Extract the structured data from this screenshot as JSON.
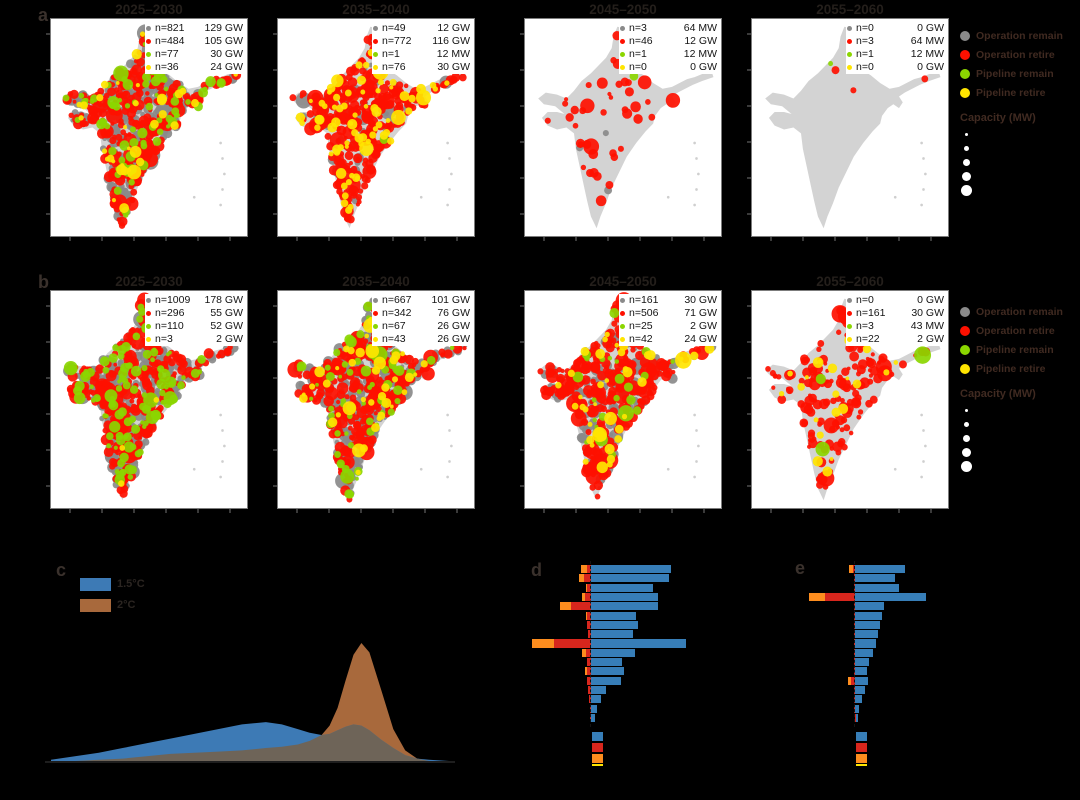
{
  "colors": {
    "background": "#000000",
    "map_land": "#d3d3d3",
    "map_bg": "#ffffff",
    "map_frame": "#7c7c7c",
    "cat_colors": {
      "operation_remain": "#8a8a8a",
      "operation_retire": "#fe1000",
      "pipeline_remain": "#8bd600",
      "pipeline_retire": "#ffe500"
    },
    "bar_blue": "#377eb8",
    "bar_red": "#d7261d",
    "bar_orange": "#fd8d1e",
    "bar_yellow": "#ffe500",
    "density_blue": "#3d7ab5",
    "density_brown": "#a8693c",
    "density_overlap": "#6e6458"
  },
  "panel_a": {
    "label": "a",
    "maps": [
      {
        "title": "2025–2030",
        "legend": [
          {
            "cat": "operation_remain",
            "n": 821,
            "n_label": "n=821",
            "cap_label": "129 GW"
          },
          {
            "cat": "operation_retire",
            "n": 484,
            "n_label": "n=484",
            "cap_label": "105 GW"
          },
          {
            "cat": "pipeline_remain",
            "n": 77,
            "n_label": "n=77",
            "cap_label": "30 GW"
          },
          {
            "cat": "pipeline_retire",
            "n": 36,
            "n_label": "n=36",
            "cap_label": "24 GW"
          }
        ]
      },
      {
        "title": "2035–2040",
        "legend": [
          {
            "cat": "operation_remain",
            "n": 49,
            "n_label": "n=49",
            "cap_label": "12 GW"
          },
          {
            "cat": "operation_retire",
            "n": 772,
            "n_label": "n=772",
            "cap_label": "116 GW"
          },
          {
            "cat": "pipeline_remain",
            "n": 1,
            "n_label": "n=1",
            "cap_label": "12 MW"
          },
          {
            "cat": "pipeline_retire",
            "n": 76,
            "n_label": "n=76",
            "cap_label": "30 GW"
          }
        ]
      },
      {
        "title": "2045–2050",
        "legend": [
          {
            "cat": "operation_remain",
            "n": 3,
            "n_label": "n=3",
            "cap_label": "64 MW"
          },
          {
            "cat": "operation_retire",
            "n": 46,
            "n_label": "n=46",
            "cap_label": "12 GW"
          },
          {
            "cat": "pipeline_remain",
            "n": 1,
            "n_label": "n=1",
            "cap_label": "12 MW"
          },
          {
            "cat": "pipeline_retire",
            "n": 0,
            "n_label": "n=0",
            "cap_label": "0 GW"
          }
        ]
      },
      {
        "title": "2055–2060",
        "legend": [
          {
            "cat": "operation_remain",
            "n": 0,
            "n_label": "n=0",
            "cap_label": "0 GW"
          },
          {
            "cat": "operation_retire",
            "n": 3,
            "n_label": "n=3",
            "cap_label": "64 MW"
          },
          {
            "cat": "pipeline_remain",
            "n": 1,
            "n_label": "n=1",
            "cap_label": "12 MW"
          },
          {
            "cat": "pipeline_retire",
            "n": 0,
            "n_label": "n=0",
            "cap_label": "0 GW"
          }
        ]
      }
    ]
  },
  "panel_b": {
    "label": "b",
    "maps": [
      {
        "title": "2025–2030",
        "legend": [
          {
            "cat": "operation_remain",
            "n": 1009,
            "n_label": "n=1009",
            "cap_label": "178 GW"
          },
          {
            "cat": "operation_retire",
            "n": 296,
            "n_label": "n=296",
            "cap_label": "55 GW"
          },
          {
            "cat": "pipeline_remain",
            "n": 110,
            "n_label": "n=110",
            "cap_label": "52 GW"
          },
          {
            "cat": "pipeline_retire",
            "n": 3,
            "n_label": "n=3",
            "cap_label": "2 GW"
          }
        ]
      },
      {
        "title": "2035–2040",
        "legend": [
          {
            "cat": "operation_remain",
            "n": 667,
            "n_label": "n=667",
            "cap_label": "101 GW"
          },
          {
            "cat": "operation_retire",
            "n": 342,
            "n_label": "n=342",
            "cap_label": "76 GW"
          },
          {
            "cat": "pipeline_remain",
            "n": 67,
            "n_label": "n=67",
            "cap_label": "26 GW"
          },
          {
            "cat": "pipeline_retire",
            "n": 43,
            "n_label": "n=43",
            "cap_label": "26 GW"
          }
        ]
      },
      {
        "title": "2045–2050",
        "legend": [
          {
            "cat": "operation_remain",
            "n": 161,
            "n_label": "n=161",
            "cap_label": "30 GW"
          },
          {
            "cat": "operation_retire",
            "n": 506,
            "n_label": "n=506",
            "cap_label": "71 GW"
          },
          {
            "cat": "pipeline_remain",
            "n": 25,
            "n_label": "n=25",
            "cap_label": "2 GW"
          },
          {
            "cat": "pipeline_retire",
            "n": 42,
            "n_label": "n=42",
            "cap_label": "24 GW"
          }
        ]
      },
      {
        "title": "2055–2060",
        "legend": [
          {
            "cat": "operation_remain",
            "n": 0,
            "n_label": "n=0",
            "cap_label": "0 GW"
          },
          {
            "cat": "operation_retire",
            "n": 161,
            "n_label": "n=161",
            "cap_label": "30 GW"
          },
          {
            "cat": "pipeline_remain",
            "n": 3,
            "n_label": "n=3",
            "cap_label": "43 MW"
          },
          {
            "cat": "pipeline_retire",
            "n": 22,
            "n_label": "n=22",
            "cap_label": "2 GW"
          }
        ]
      }
    ]
  },
  "side_legend": {
    "items": [
      {
        "key": "operation_remain",
        "label": "Operation remain",
        "color": "#8a8a8a"
      },
      {
        "key": "operation_retire",
        "label": "Operation retire",
        "color": "#fe1000"
      },
      {
        "key": "pipeline_remain",
        "label": "Pipeline remain",
        "color": "#8bd600"
      },
      {
        "key": "pipeline_retire",
        "label": "Pipeline retire",
        "color": "#ffe500"
      }
    ],
    "capacity_title": "Capacity (MW)",
    "size_dot_diameters": [
      3,
      5,
      7,
      9,
      11
    ]
  },
  "panel_c": {
    "label": "c",
    "legend": [
      {
        "label": "1.5°C",
        "color": "#3d7ab5"
      },
      {
        "label": "2°C",
        "color": "#a8693c"
      }
    ]
  },
  "panel_d": {
    "label": "d"
  },
  "panel_e": {
    "label": "e"
  },
  "chart_data": [
    {
      "panel": "c",
      "type": "area",
      "title": "",
      "xlabel": "",
      "ylabel": "",
      "legend_position": "top-left",
      "axis_tick_labels_visible": false,
      "x_relative": [
        0,
        6,
        12,
        18,
        24,
        30,
        36,
        42,
        48,
        54,
        58,
        62,
        65,
        68,
        70,
        72,
        74,
        76,
        78,
        80,
        83,
        86,
        89,
        92,
        95,
        100
      ],
      "ylim": [
        0,
        1.05
      ],
      "series": [
        {
          "name": "1.5°C",
          "color": "#3d7ab5",
          "values": [
            0.01,
            0.04,
            0.07,
            0.11,
            0.15,
            0.19,
            0.23,
            0.27,
            0.31,
            0.33,
            0.31,
            0.27,
            0.24,
            0.22,
            0.23,
            0.26,
            0.29,
            0.31,
            0.3,
            0.26,
            0.18,
            0.11,
            0.05,
            0.02,
            0.01,
            0
          ]
        },
        {
          "name": "2°C",
          "color": "#a8693c",
          "values": [
            0,
            0,
            0.01,
            0.02,
            0.04,
            0.06,
            0.07,
            0.08,
            0.09,
            0.11,
            0.12,
            0.14,
            0.17,
            0.22,
            0.3,
            0.45,
            0.68,
            0.9,
            1.0,
            0.92,
            0.6,
            0.27,
            0.09,
            0.02,
            0,
            0
          ]
        }
      ]
    },
    {
      "panel": "d",
      "type": "bar",
      "orientation": "horizontal-diverging",
      "rows": 17,
      "value_scale": "relative_0_100",
      "category_labels_visible": false,
      "series": [
        {
          "name": "right-blue",
          "color": "#377eb8",
          "values": [
            84,
            82,
            65,
            70,
            70,
            47,
            49,
            44,
            100,
            46,
            33,
            35,
            32,
            16,
            10,
            6,
            4
          ]
        },
        {
          "name": "left-red",
          "color": "#d7261d",
          "values": [
            4,
            7,
            4,
            6,
            21,
            4,
            4,
            3,
            39,
            5,
            4,
            4,
            4,
            3,
            2,
            1,
            1
          ]
        },
        {
          "name": "left-orange",
          "color": "#fd8d1e",
          "values": [
            7,
            6,
            1,
            4,
            12,
            1,
            0,
            0,
            23,
            4,
            0,
            2,
            0,
            0,
            0,
            0,
            0
          ]
        }
      ],
      "legend_swatches": [
        "#377eb8",
        "#d7261d",
        "#fd8d1e"
      ]
    },
    {
      "panel": "e",
      "type": "bar",
      "orientation": "horizontal-diverging",
      "rows": 17,
      "value_scale": "relative_0_100",
      "category_labels_visible": false,
      "series": [
        {
          "name": "right-blue",
          "color": "#377eb8",
          "values": [
            53,
            42,
            46,
            75,
            30,
            28,
            26,
            24,
            22,
            19,
            15,
            13,
            14,
            10,
            7,
            4,
            3
          ]
        },
        {
          "name": "left-red",
          "color": "#d7261d",
          "values": [
            2,
            1.5,
            1.5,
            32,
            1.5,
            1.5,
            1.5,
            1.5,
            1.5,
            1.5,
            1.5,
            1.5,
            4,
            1,
            1,
            0.7,
            0.5
          ]
        },
        {
          "name": "left-orange",
          "color": "#fd8d1e",
          "values": [
            4,
            0,
            0,
            16,
            0,
            0,
            0,
            0,
            0,
            0,
            0,
            0,
            3.5,
            0,
            0,
            0,
            0
          ]
        }
      ],
      "legend_swatches": [
        "#377eb8",
        "#d7261d",
        "#fd8d1e"
      ]
    }
  ]
}
